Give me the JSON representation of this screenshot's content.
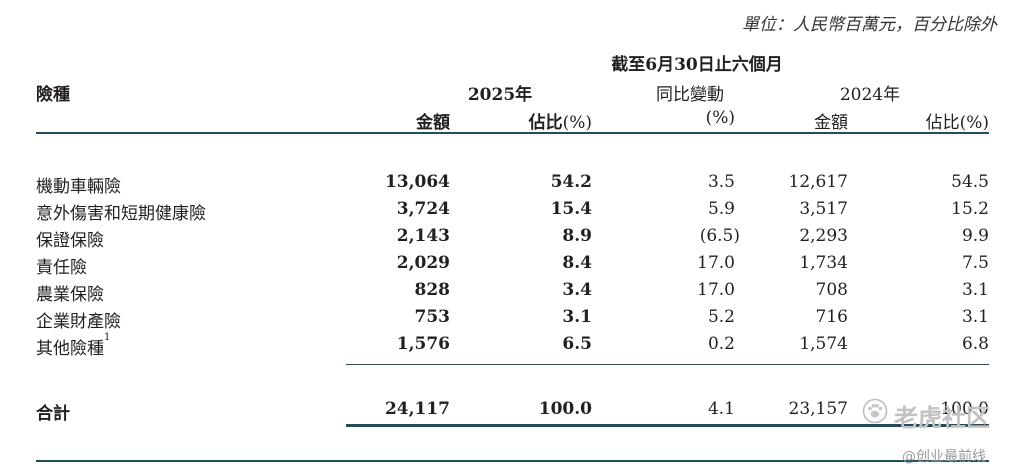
{
  "unit_note": "單位：人民幣百萬元，百分比除外",
  "period_header": "截至6月30日止六個月",
  "col_insurance": "險種",
  "year_2025": "2025年",
  "yoy_change": "同比變動",
  "year_2024": "2024年",
  "sub_amount_2025": "金額",
  "sub_pct_2025_main": "佔比",
  "sub_pct_2025_unit": "(%)",
  "sub_yoy_unit": "(%)",
  "sub_amount_2024": "金額",
  "sub_pct_2024_main": "佔比",
  "sub_pct_2024_unit": "(%)",
  "rows": [
    {
      "label": "機動車輛險",
      "sup": "",
      "amount_2025": "13,064",
      "pct_2025": "54.2",
      "yoy": "3.5",
      "amount_2024": "12,617",
      "pct_2024": "54.5"
    },
    {
      "label": "意外傷害和短期健康險",
      "sup": "",
      "amount_2025": "3,724",
      "pct_2025": "15.4",
      "yoy": "5.9",
      "amount_2024": "3,517",
      "pct_2024": "15.2"
    },
    {
      "label": "保證保險",
      "sup": "",
      "amount_2025": "2,143",
      "pct_2025": "8.9",
      "yoy": "(6.5)",
      "amount_2024": "2,293",
      "pct_2024": "9.9"
    },
    {
      "label": "責任險",
      "sup": "",
      "amount_2025": "2,029",
      "pct_2025": "8.4",
      "yoy": "17.0",
      "amount_2024": "1,734",
      "pct_2024": "7.5"
    },
    {
      "label": "農業保險",
      "sup": "",
      "amount_2025": "828",
      "pct_2025": "3.4",
      "yoy": "17.0",
      "amount_2024": "708",
      "pct_2024": "3.1"
    },
    {
      "label": "企業財產險",
      "sup": "",
      "amount_2025": "753",
      "pct_2025": "3.1",
      "yoy": "5.2",
      "amount_2024": "716",
      "pct_2024": "3.1"
    },
    {
      "label": "其他險種",
      "sup": "1",
      "amount_2025": "1,576",
      "pct_2025": "6.5",
      "yoy": "0.2",
      "amount_2024": "1,574",
      "pct_2024": "6.8"
    }
  ],
  "total": {
    "label": "合計",
    "amount_2025": "24,117",
    "pct_2025": "100.0",
    "yoy": "4.1",
    "amount_2024": "23,157",
    "pct_2024": "100.0"
  },
  "watermark_1": "老虎社区",
  "watermark_2": "@创业最前线"
}
